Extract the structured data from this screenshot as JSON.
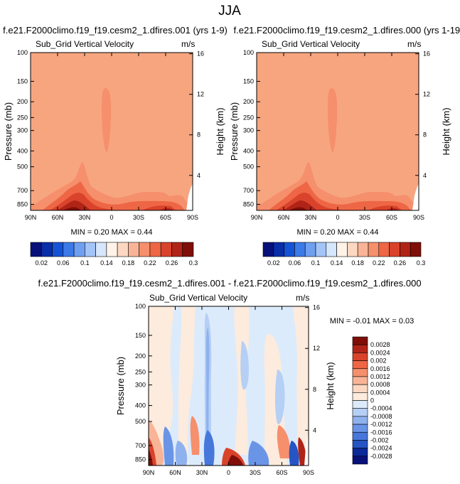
{
  "title": "JJA",
  "colors": {
    "plot_bg": "#F7A57F",
    "missing": "#FFFFFF"
  },
  "top_colorbar": {
    "labels": [
      "0.02",
      "0.06",
      "0.1",
      "0.14",
      "0.18",
      "0.22",
      "0.26",
      "0.3"
    ],
    "colors": [
      "#08107A",
      "#0A2EA8",
      "#1553D6",
      "#3C7AE8",
      "#6F9FF0",
      "#A3C4F7",
      "#D6E6FC",
      "#FFF3E8",
      "#FCD8C2",
      "#F9B497",
      "#F58F6C",
      "#EE6645",
      "#D9432B",
      "#B02417",
      "#7F0E08"
    ]
  },
  "diff_colorbar": {
    "labels": [
      "0.0028",
      "0.0024",
      "0.002",
      "0.0016",
      "0.0012",
      "0.0008",
      "0.0004",
      "0",
      "-0.0004",
      "-0.0008",
      "-0.0012",
      "-0.0016",
      "-0.002",
      "-0.0024",
      "-0.0028"
    ],
    "colors": [
      "#7F0E08",
      "#B02417",
      "#D9432B",
      "#EE6645",
      "#F58F6C",
      "#F9B497",
      "#FCD8C2",
      "#FDEBDD",
      "#DCEBFB",
      "#B5CFF5",
      "#8FB2EE",
      "#6A94E6",
      "#4777DB",
      "#2654C4",
      "#0A2A9A",
      "#08107A"
    ]
  },
  "chart_data": [
    {
      "id": "panel1",
      "type": "heatmap",
      "subtitle": "f.e21.F2000climo.f19_f19.cesm2_1.dfires.001 (yrs 1-9)",
      "title": "Sub_Grid Vertical Velocity",
      "units": "m/s",
      "ylabel": "Pressure (mb)",
      "y2label": "Height (km)",
      "x_ticks": [
        "90N",
        "60N",
        "30N",
        "0",
        "30S",
        "60S",
        "90S"
      ],
      "y_ticks": [
        "100",
        "150",
        "200",
        "250",
        "300",
        "400",
        "500",
        "700",
        "850"
      ],
      "y2_ticks": [
        "16",
        "12",
        "8",
        "4"
      ],
      "min_label": "MIN =  0.20  MAX =  0.44",
      "min": 0.2,
      "max": 0.44,
      "ylim": [
        100,
        925
      ]
    },
    {
      "id": "panel2",
      "type": "heatmap",
      "subtitle": "f.e21.F2000climo.f19_f19.cesm2_1.dfires.000 (yrs 1-19)",
      "title": "Sub_Grid Vertical Velocity",
      "units": "m/s",
      "ylabel": "Pressure (mb)",
      "y2label": "Height (km)",
      "x_ticks": [
        "90N",
        "60N",
        "30N",
        "0",
        "30S",
        "60S",
        "90S"
      ],
      "y_ticks": [
        "100",
        "150",
        "200",
        "250",
        "300",
        "400",
        "500",
        "700",
        "850"
      ],
      "y2_ticks": [
        "16",
        "12",
        "8",
        "4"
      ],
      "min_label": "MIN =  0.20  MAX =  0.44",
      "min": 0.2,
      "max": 0.44,
      "ylim": [
        100,
        925
      ]
    },
    {
      "id": "panel3",
      "type": "heatmap",
      "subtitle": "f.e21.F2000climo.f19_f19.cesm2_1.dfires.001 - f.e21.F2000climo.f19_f19.cesm2_1.dfires.000",
      "title": "Sub_Grid Vertical Velocity",
      "units": "m/s",
      "ylabel": "Pressure (mb)",
      "y2label": "Height (km)",
      "x_ticks": [
        "90N",
        "60N",
        "30N",
        "0",
        "30S",
        "60S",
        "90S"
      ],
      "y_ticks": [
        "100",
        "150",
        "200",
        "250",
        "300",
        "400",
        "500",
        "700",
        "850"
      ],
      "y2_ticks": [
        "16",
        "12",
        "8",
        "4"
      ],
      "min_label": "MIN = -0.01  MAX =  0.03",
      "min": -0.01,
      "max": 0.03,
      "ylim": [
        100,
        925
      ]
    }
  ]
}
